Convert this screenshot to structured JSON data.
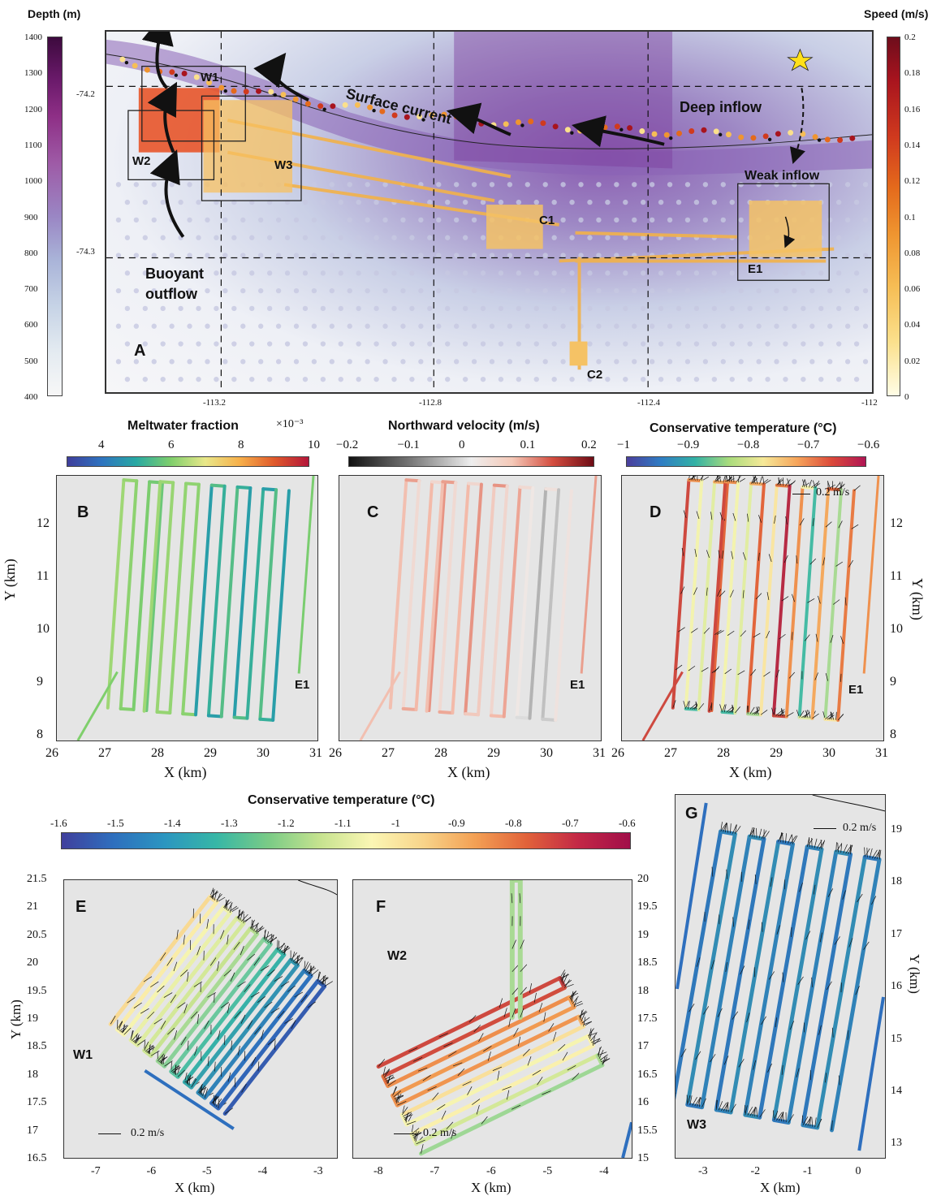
{
  "panelA": {
    "letter": "A",
    "depth_title": "Depth (m)",
    "depth_ticks": [
      "1400",
      "1300",
      "1200",
      "1100",
      "1000",
      "900",
      "800",
      "700",
      "600",
      "500",
      "400"
    ],
    "speed_title": "Speed (m/s)",
    "speed_ticks": [
      "0.2",
      "0.18",
      "0.16",
      "0.14",
      "0.12",
      "0.1",
      "0.08",
      "0.06",
      "0.04",
      "0.02",
      "0"
    ],
    "lat_ticks": [
      "-74.2",
      "-74.3"
    ],
    "lon_ticks": [
      "-113.2",
      "-112.8",
      "-112.4",
      "-112"
    ],
    "labels": {
      "w1": "W1",
      "w2": "W2",
      "w3": "W3",
      "c1": "C1",
      "c2": "C2",
      "e1": "E1",
      "surface_current": "Surface current",
      "deep_inflow": "Deep inflow",
      "weak_inflow": "Weak inflow",
      "buoyant": "Buoyant",
      "outflow": "outflow"
    },
    "colors": {
      "depth_high": "#4a1249",
      "depth_mid": "#9a7ec2",
      "depth_low": "#f2f2f2",
      "speed_high": "#7a0f1c",
      "speed_low": "#fffde0"
    }
  },
  "panelB": {
    "letter": "B",
    "region": "E1",
    "cbar_title": "Meltwater fraction",
    "cbar_exponent": "×10⁻³",
    "cbar_ticks": [
      "4",
      "6",
      "8",
      "10"
    ],
    "x_ticks": [
      "26",
      "27",
      "28",
      "29",
      "30",
      "31"
    ],
    "y_ticks": [
      "12",
      "11",
      "10",
      "9",
      "8"
    ],
    "xlabel": "X (km)",
    "ylabel": "Y (km)"
  },
  "panelC": {
    "letter": "C",
    "region": "E1",
    "cbar_title": "Northward velocity (m/s)",
    "cbar_ticks": [
      "−0.2",
      "−0.1",
      "0",
      "0.1",
      "0.2"
    ],
    "x_ticks": [
      "26",
      "27",
      "28",
      "29",
      "30",
      "31"
    ],
    "xlabel": "X (km)"
  },
  "panelD": {
    "letter": "D",
    "region": "E1",
    "cbar_title": "Conservative temperature (°C)",
    "cbar_ticks": [
      "−1",
      "−0.9",
      "−0.8",
      "−0.7",
      "−0.6"
    ],
    "x_ticks": [
      "26",
      "27",
      "28",
      "29",
      "30",
      "31"
    ],
    "y_ticks": [
      "12",
      "11",
      "10",
      "9",
      "8"
    ],
    "xlabel": "X (km)",
    "ylabel": "Y (km)",
    "scale_label": "0.2 m/s"
  },
  "bottom_cbar": {
    "title": "Conservative temperature (°C)",
    "ticks": [
      "-1.6",
      "-1.5",
      "-1.4",
      "-1.3",
      "-1.2",
      "-1.1",
      "-1",
      "-0.9",
      "-0.8",
      "-0.7",
      "-0.6"
    ]
  },
  "panelE": {
    "letter": "E",
    "region": "W1",
    "x_ticks": [
      "-7",
      "-6",
      "-5",
      "-4",
      "-3"
    ],
    "y_ticks": [
      "21.5",
      "21",
      "20.5",
      "20",
      "19.5",
      "19",
      "18.5",
      "18",
      "17.5",
      "17",
      "16.5"
    ],
    "xlabel": "X (km)",
    "ylabel": "Y (km)",
    "scale_label": "0.2 m/s"
  },
  "panelF": {
    "letter": "F",
    "region": "W2",
    "x_ticks": [
      "-8",
      "-7",
      "-6",
      "-5",
      "-4"
    ],
    "y_ticks": [
      "20",
      "19.5",
      "19",
      "18.5",
      "18",
      "17.5",
      "17",
      "16.5",
      "16",
      "15.5",
      "15"
    ],
    "xlabel": "X (km)",
    "scale_label": "0.2 m/s"
  },
  "panelG": {
    "letter": "G",
    "region": "W3",
    "x_ticks": [
      "-3",
      "-2",
      "-1",
      "0"
    ],
    "y_ticks": [
      "19",
      "18",
      "17",
      "16",
      "15",
      "14",
      "13"
    ],
    "xlabel": "X (km)",
    "ylabel": "Y (km)",
    "scale_label": "0.2 m/s"
  }
}
